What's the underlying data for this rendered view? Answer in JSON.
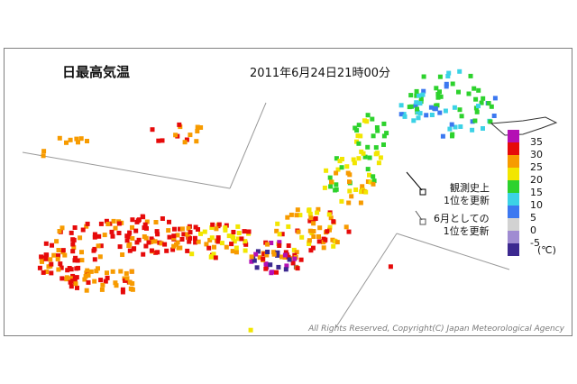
{
  "map": {
    "title": "日最高気温",
    "timestamp": "2011年6月24日21時00分",
    "legend": {
      "record_all_time": "観測史上\n1位を更新",
      "record_month": "6月としての\n1位を更新"
    },
    "scale": [
      {
        "label": "35",
        "color": "#b40fb4"
      },
      {
        "label": "30",
        "color": "#e60a0a"
      },
      {
        "label": "25",
        "color": "#f79b00"
      },
      {
        "label": "20",
        "color": "#f2e600"
      },
      {
        "label": "15",
        "color": "#2dd22d"
      },
      {
        "label": "10",
        "color": "#3cd2e6"
      },
      {
        "label": "5",
        "color": "#3c78f0"
      },
      {
        "label": "0",
        "color": "#d2d2d2"
      },
      {
        "label": "-5",
        "color": "#a08cd2"
      },
      {
        "label": "",
        "color": "#3c2890"
      }
    ],
    "unit": "(℃)",
    "copyright": "All Rights Reserved, Copyright(C) Japan Meteorological Agency"
  }
}
